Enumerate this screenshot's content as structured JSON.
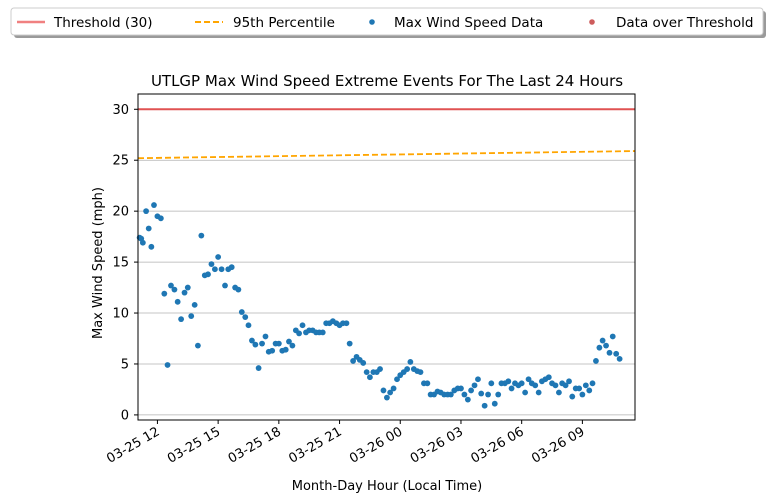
{
  "chart_data": {
    "type": "scatter",
    "title": "UTLGP Max Wind Speed Extreme Events For The Last 24 Hours",
    "xlabel": "Month-Day Hour (Local Time)",
    "ylabel": "Max Wind Speed (mph)",
    "x_unit": "hours",
    "xlim": [
      -0.96,
      23.6
    ],
    "ylim": [
      -0.5,
      31.5
    ],
    "x_ticks": [
      {
        "value": 0,
        "label": "03-25 12"
      },
      {
        "value": 3,
        "label": "03-25 15"
      },
      {
        "value": 6,
        "label": "03-25 18"
      },
      {
        "value": 9,
        "label": "03-25 21"
      },
      {
        "value": 12,
        "label": "03-26 00"
      },
      {
        "value": 15,
        "label": "03-26 03"
      },
      {
        "value": 18,
        "label": "03-26 06"
      },
      {
        "value": 21,
        "label": "03-26 09"
      }
    ],
    "y_ticks": [
      0,
      5,
      10,
      15,
      20,
      25,
      30
    ],
    "grid": "horizontal",
    "legend_position": "top, outside plot",
    "legend": [
      {
        "label": "Threshold (30)",
        "kind": "line",
        "color": "#f08080"
      },
      {
        "label": "95th Percentile",
        "kind": "dashed-line",
        "color": "#ffa500"
      },
      {
        "label": "Max Wind Speed Data",
        "kind": "marker",
        "color": "#1f77b4"
      },
      {
        "label": "Data over Threshold",
        "kind": "marker",
        "color": "#cd5c5c"
      }
    ],
    "threshold": {
      "value": 30,
      "color": "#e05252"
    },
    "percentile95": {
      "start": 25.2,
      "end": 25.9,
      "color": "#ffa500"
    },
    "series": [
      {
        "name": "Max Wind Speed Data",
        "color": "#1f77b4",
        "points": [
          [
            -0.88,
            17.4
          ],
          [
            -0.8,
            17.3
          ],
          [
            -0.72,
            16.9
          ],
          [
            -0.56,
            20.0
          ],
          [
            -0.43,
            18.3
          ],
          [
            -0.3,
            16.5
          ],
          [
            -0.17,
            20.6
          ],
          [
            0.0,
            19.5
          ],
          [
            0.17,
            19.3
          ],
          [
            0.34,
            11.9
          ],
          [
            0.5,
            4.9
          ],
          [
            0.67,
            12.7
          ],
          [
            0.84,
            12.3
          ],
          [
            1.0,
            11.1
          ],
          [
            1.17,
            9.4
          ],
          [
            1.34,
            12.0
          ],
          [
            1.5,
            12.5
          ],
          [
            1.67,
            9.7
          ],
          [
            1.84,
            10.8
          ],
          [
            2.0,
            6.8
          ],
          [
            2.17,
            17.6
          ],
          [
            2.34,
            13.7
          ],
          [
            2.5,
            13.8
          ],
          [
            2.67,
            14.8
          ],
          [
            2.84,
            14.3
          ],
          [
            3.0,
            15.5
          ],
          [
            3.17,
            14.3
          ],
          [
            3.34,
            12.7
          ],
          [
            3.5,
            14.3
          ],
          [
            3.67,
            14.5
          ],
          [
            3.84,
            12.5
          ],
          [
            4.0,
            12.3
          ],
          [
            4.17,
            10.1
          ],
          [
            4.34,
            9.6
          ],
          [
            4.5,
            8.8
          ],
          [
            4.67,
            7.3
          ],
          [
            4.84,
            6.9
          ],
          [
            5.0,
            4.6
          ],
          [
            5.17,
            7.0
          ],
          [
            5.34,
            7.7
          ],
          [
            5.5,
            6.2
          ],
          [
            5.67,
            6.3
          ],
          [
            5.84,
            7.0
          ],
          [
            6.0,
            7.0
          ],
          [
            6.17,
            6.3
          ],
          [
            6.34,
            6.4
          ],
          [
            6.5,
            7.2
          ],
          [
            6.67,
            6.8
          ],
          [
            6.84,
            8.3
          ],
          [
            7.0,
            8.0
          ],
          [
            7.17,
            8.8
          ],
          [
            7.34,
            8.1
          ],
          [
            7.5,
            8.3
          ],
          [
            7.67,
            8.3
          ],
          [
            7.84,
            8.1
          ],
          [
            8.0,
            8.1
          ],
          [
            8.17,
            8.1
          ],
          [
            8.34,
            9.0
          ],
          [
            8.5,
            9.0
          ],
          [
            8.67,
            9.2
          ],
          [
            8.84,
            9.0
          ],
          [
            9.0,
            8.8
          ],
          [
            9.17,
            9.0
          ],
          [
            9.34,
            9.0
          ],
          [
            9.5,
            7.0
          ],
          [
            9.67,
            5.3
          ],
          [
            9.84,
            5.7
          ],
          [
            10.0,
            5.4
          ],
          [
            10.17,
            5.1
          ],
          [
            10.34,
            4.2
          ],
          [
            10.5,
            3.7
          ],
          [
            10.67,
            4.2
          ],
          [
            10.84,
            4.2
          ],
          [
            11.0,
            4.5
          ],
          [
            11.17,
            2.4
          ],
          [
            11.34,
            1.7
          ],
          [
            11.5,
            2.2
          ],
          [
            11.67,
            2.6
          ],
          [
            11.84,
            3.5
          ],
          [
            12.0,
            3.9
          ],
          [
            12.17,
            4.2
          ],
          [
            12.34,
            4.5
          ],
          [
            12.5,
            5.2
          ],
          [
            12.67,
            4.5
          ],
          [
            12.84,
            4.3
          ],
          [
            13.0,
            4.2
          ],
          [
            13.17,
            3.1
          ],
          [
            13.34,
            3.1
          ],
          [
            13.5,
            2.0
          ],
          [
            13.67,
            2.0
          ],
          [
            13.84,
            2.3
          ],
          [
            14.0,
            2.2
          ],
          [
            14.17,
            2.0
          ],
          [
            14.34,
            2.0
          ],
          [
            14.5,
            2.0
          ],
          [
            14.67,
            2.4
          ],
          [
            14.84,
            2.6
          ],
          [
            15.0,
            2.6
          ],
          [
            15.17,
            2.0
          ],
          [
            15.34,
            1.5
          ],
          [
            15.5,
            2.4
          ],
          [
            15.67,
            2.9
          ],
          [
            15.84,
            3.5
          ],
          [
            16.0,
            2.1
          ],
          [
            16.17,
            0.9
          ],
          [
            16.34,
            2.0
          ],
          [
            16.5,
            3.1
          ],
          [
            16.67,
            1.1
          ],
          [
            16.84,
            2.0
          ],
          [
            17.0,
            3.1
          ],
          [
            17.17,
            3.1
          ],
          [
            17.34,
            3.3
          ],
          [
            17.5,
            2.6
          ],
          [
            17.67,
            3.1
          ],
          [
            17.84,
            2.9
          ],
          [
            18.0,
            3.1
          ],
          [
            18.17,
            2.2
          ],
          [
            18.34,
            3.5
          ],
          [
            18.5,
            3.1
          ],
          [
            18.67,
            2.9
          ],
          [
            18.84,
            2.2
          ],
          [
            19.0,
            3.3
          ],
          [
            19.17,
            3.5
          ],
          [
            19.34,
            3.7
          ],
          [
            19.5,
            3.1
          ],
          [
            19.67,
            2.9
          ],
          [
            19.84,
            2.2
          ],
          [
            20.0,
            3.1
          ],
          [
            20.17,
            2.9
          ],
          [
            20.34,
            3.3
          ],
          [
            20.5,
            1.8
          ],
          [
            20.67,
            2.6
          ],
          [
            20.84,
            2.6
          ],
          [
            21.0,
            2.0
          ],
          [
            21.17,
            2.9
          ],
          [
            21.34,
            2.4
          ],
          [
            21.5,
            3.1
          ],
          [
            21.67,
            5.3
          ],
          [
            21.84,
            6.6
          ],
          [
            22.0,
            7.3
          ],
          [
            22.17,
            6.8
          ],
          [
            22.34,
            6.1
          ],
          [
            22.5,
            7.7
          ],
          [
            22.67,
            6.0
          ],
          [
            22.84,
            5.5
          ]
        ]
      },
      {
        "name": "Data over Threshold",
        "color": "#cd5c5c",
        "points": []
      }
    ]
  }
}
